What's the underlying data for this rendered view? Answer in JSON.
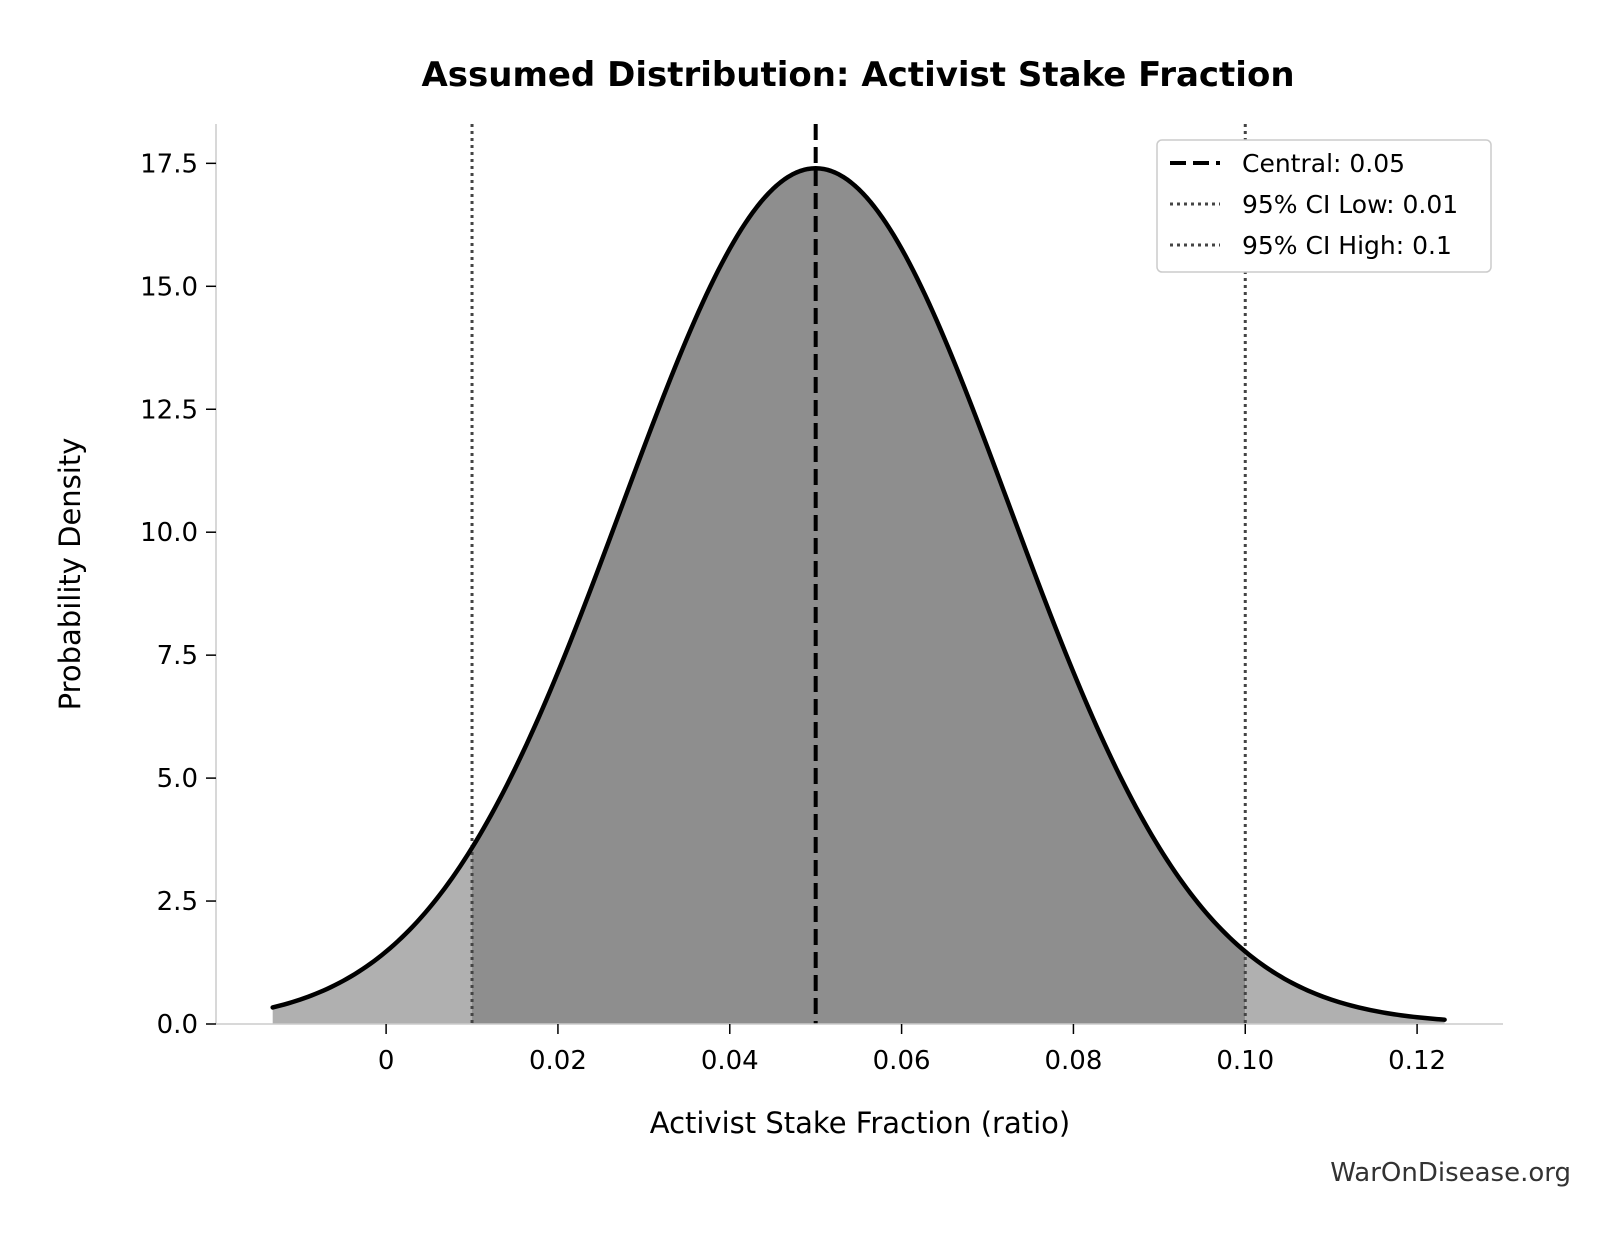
{
  "chart_data": {
    "type": "area",
    "title": "Assumed Distribution: Activist Stake Fraction",
    "xlabel": "Activist Stake Fraction (ratio)",
    "ylabel": "Probability Density",
    "xlim": [
      -0.0198,
      0.13
    ],
    "ylim": [
      0,
      18.3
    ],
    "x_ticks": [
      0,
      0.02,
      0.04,
      0.06,
      0.08,
      0.1,
      0.12
    ],
    "x_tick_labels": [
      "0",
      "0.02",
      "0.04",
      "0.06",
      "0.08",
      "0.10",
      "0.12"
    ],
    "y_ticks": [
      0,
      2.5,
      5,
      7.5,
      10,
      12.5,
      15,
      17.5
    ],
    "y_tick_labels": [
      "0.0",
      "2.5",
      "5.0",
      "7.5",
      "10.0",
      "12.5",
      "15.0",
      "17.5"
    ],
    "grid": false,
    "legend_position": "top-right",
    "distribution": {
      "curve_x_range": [
        -0.0132,
        0.1232
      ],
      "center": 0.05,
      "spread": 0.0225,
      "peak_density": 17.4
    },
    "series": [
      {
        "name": "Central: 0.05",
        "value": 0.05,
        "style": "dashed",
        "color": "#000000"
      },
      {
        "name": "95% CI Low: 0.01",
        "value": 0.01,
        "style": "dotted",
        "color": "#444444"
      },
      {
        "name": "95% CI High: 0.1",
        "value": 0.1,
        "style": "dotted",
        "color": "#444444"
      }
    ],
    "colors": {
      "tail_fill": "#b0b0b0",
      "ci_fill": "#8e8e8e",
      "curve": "#000000"
    }
  },
  "watermark": "WarOnDisease.org"
}
